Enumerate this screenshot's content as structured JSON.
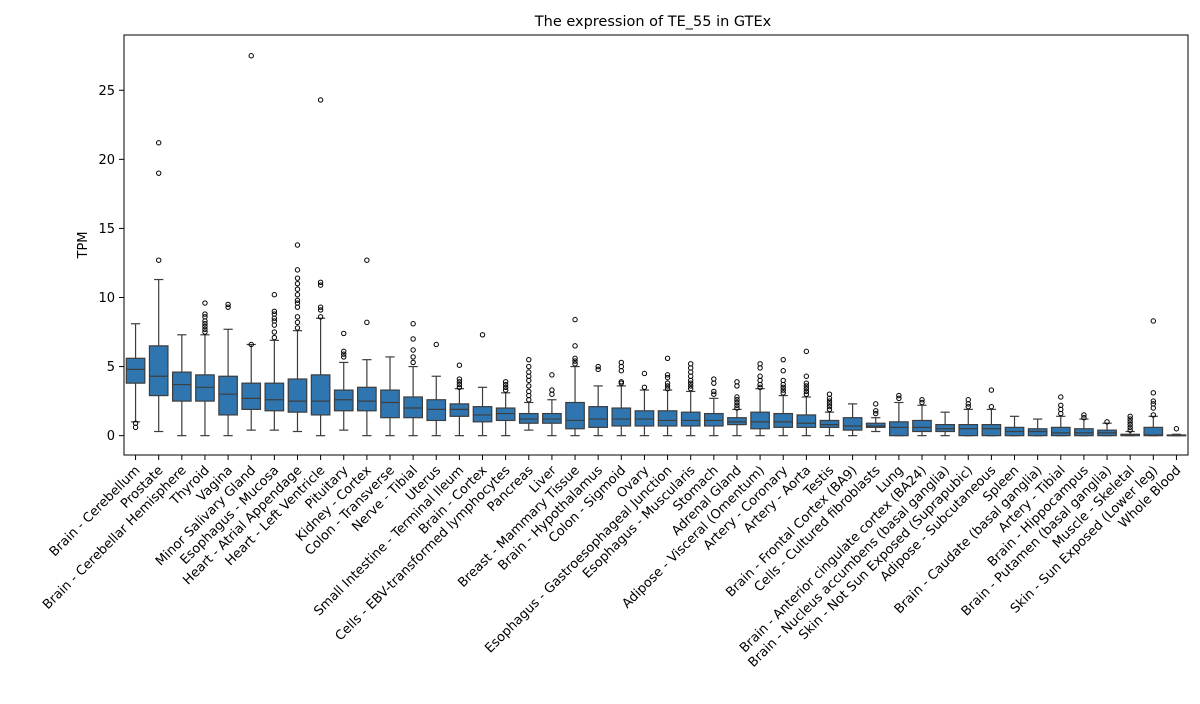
{
  "chart_data": {
    "type": "box",
    "title": "The expression of TE_55 in GTEx",
    "xlabel": "",
    "ylabel": "TPM",
    "ylim": [
      -1.4,
      29
    ],
    "yticks": [
      0,
      5,
      10,
      15,
      20,
      25
    ],
    "grid": false,
    "box_color": "#2f75b0",
    "categories": [
      "Brain - Cerebellum",
      "Prostate",
      "Brain - Cerebellar Hemisphere",
      "Thyroid",
      "Vagina",
      "Minor Salivary Gland",
      "Esophagus - Mucosa",
      "Heart - Atrial Appendage",
      "Heart - Left Ventricle",
      "Pituitary",
      "Kidney - Cortex",
      "Colon - Transverse",
      "Nerve - Tibial",
      "Uterus",
      "Small Intestine - Terminal Ileum",
      "Brain - Cortex",
      "Cells - EBV-transformed lymphocytes",
      "Pancreas",
      "Liver",
      "Breast - Mammary Tissue",
      "Brain - Hypothalamus",
      "Colon - Sigmoid",
      "Ovary",
      "Esophagus - Gastroesophageal Junction",
      "Esophagus - Muscularis",
      "Stomach",
      "Adrenal Gland",
      "Adipose - Visceral (Omentum)",
      "Artery - Coronary",
      "Artery - Aorta",
      "Testis",
      "Brain - Frontal Cortex (BA9)",
      "Cells - Cultured fibroblasts",
      "Lung",
      "Brain - Anterior cingulate cortex (BA24)",
      "Brain - Nucleus accumbens (basal ganglia)",
      "Skin - Not Sun Exposed (Suprapubic)",
      "Adipose - Subcutaneous",
      "Spleen",
      "Brain - Caudate (basal ganglia)",
      "Artery - Tibial",
      "Brain - Hippocampus",
      "Brain - Putamen (basal ganglia)",
      "Muscle - Skeletal",
      "Skin - Sun Exposed (Lower leg)",
      "Whole Blood"
    ],
    "boxes": [
      {
        "whislo": 1.0,
        "q1": 3.8,
        "med": 4.8,
        "q3": 5.6,
        "whishi": 8.1,
        "fliers": [
          0.6,
          0.9
        ]
      },
      {
        "whislo": 0.3,
        "q1": 2.9,
        "med": 4.3,
        "q3": 6.5,
        "whishi": 11.3,
        "fliers": [
          12.7,
          19.0,
          21.2
        ]
      },
      {
        "whislo": 0.0,
        "q1": 2.5,
        "med": 3.7,
        "q3": 4.6,
        "whishi": 7.3,
        "fliers": []
      },
      {
        "whislo": 0.0,
        "q1": 2.5,
        "med": 3.5,
        "q3": 4.4,
        "whishi": 7.3,
        "fliers": [
          7.5,
          7.7,
          7.9,
          8.1,
          8.3,
          8.6,
          8.8,
          9.6
        ]
      },
      {
        "whislo": 0.0,
        "q1": 1.5,
        "med": 3.0,
        "q3": 4.3,
        "whishi": 7.7,
        "fliers": [
          9.3,
          9.5
        ]
      },
      {
        "whislo": 0.4,
        "q1": 1.9,
        "med": 2.7,
        "q3": 3.8,
        "whishi": 6.6,
        "fliers": [
          6.6,
          27.5
        ]
      },
      {
        "whislo": 0.4,
        "q1": 1.8,
        "med": 2.6,
        "q3": 3.8,
        "whishi": 6.9,
        "fliers": [
          7.1,
          7.5,
          8.0,
          8.3,
          8.5,
          8.8,
          9.0,
          10.2
        ]
      },
      {
        "whislo": 0.3,
        "q1": 1.7,
        "med": 2.5,
        "q3": 4.1,
        "whishi": 7.6,
        "fliers": [
          7.8,
          8.2,
          8.6,
          9.3,
          9.6,
          9.8,
          10.2,
          10.6,
          11.0,
          11.4,
          12.0,
          13.8
        ]
      },
      {
        "whislo": 0.0,
        "q1": 1.5,
        "med": 2.5,
        "q3": 4.4,
        "whishi": 8.5,
        "fliers": [
          8.6,
          9.1,
          9.3,
          10.9,
          11.1,
          24.3
        ]
      },
      {
        "whislo": 0.4,
        "q1": 1.8,
        "med": 2.6,
        "q3": 3.3,
        "whishi": 5.3,
        "fliers": [
          5.7,
          5.9,
          6.1,
          7.4
        ]
      },
      {
        "whislo": 0.0,
        "q1": 1.8,
        "med": 2.5,
        "q3": 3.5,
        "whishi": 5.5,
        "fliers": [
          8.2,
          12.7
        ]
      },
      {
        "whislo": 0.0,
        "q1": 1.3,
        "med": 2.4,
        "q3": 3.3,
        "whishi": 5.7,
        "fliers": []
      },
      {
        "whislo": 0.0,
        "q1": 1.3,
        "med": 2.0,
        "q3": 2.8,
        "whishi": 5.0,
        "fliers": [
          5.3,
          5.7,
          6.2,
          7.0,
          8.1
        ]
      },
      {
        "whislo": 0.0,
        "q1": 1.1,
        "med": 1.9,
        "q3": 2.6,
        "whishi": 4.3,
        "fliers": [
          6.6
        ]
      },
      {
        "whislo": 0.0,
        "q1": 1.4,
        "med": 1.9,
        "q3": 2.3,
        "whishi": 3.4,
        "fliers": [
          3.5,
          3.7,
          3.9,
          4.1,
          5.1
        ]
      },
      {
        "whislo": 0.0,
        "q1": 1.0,
        "med": 1.5,
        "q3": 2.1,
        "whishi": 3.5,
        "fliers": [
          7.3
        ]
      },
      {
        "whislo": 0.0,
        "q1": 1.1,
        "med": 1.6,
        "q3": 2.0,
        "whishi": 3.1,
        "fliers": [
          3.3,
          3.5,
          3.7,
          3.9
        ]
      },
      {
        "whislo": 0.4,
        "q1": 0.9,
        "med": 1.2,
        "q3": 1.6,
        "whishi": 2.4,
        "fliers": [
          2.6,
          2.9,
          3.2,
          3.6,
          4.0,
          4.3,
          4.6,
          5.0,
          5.5
        ]
      },
      {
        "whislo": 0.0,
        "q1": 0.9,
        "med": 1.2,
        "q3": 1.6,
        "whishi": 2.6,
        "fliers": [
          3.0,
          3.3,
          4.4
        ]
      },
      {
        "whislo": 0.0,
        "q1": 0.5,
        "med": 1.1,
        "q3": 2.4,
        "whishi": 5.0,
        "fliers": [
          5.2,
          5.4,
          5.6,
          6.5,
          8.4
        ]
      },
      {
        "whislo": 0.0,
        "q1": 0.6,
        "med": 1.2,
        "q3": 2.1,
        "whishi": 3.6,
        "fliers": [
          4.8,
          5.0
        ]
      },
      {
        "whislo": 0.0,
        "q1": 0.7,
        "med": 1.2,
        "q3": 2.0,
        "whishi": 3.6,
        "fliers": [
          3.8,
          3.9,
          4.7,
          5.0,
          5.3
        ]
      },
      {
        "whislo": 0.0,
        "q1": 0.7,
        "med": 1.2,
        "q3": 1.8,
        "whishi": 3.3,
        "fliers": [
          3.5,
          4.5
        ]
      },
      {
        "whislo": 0.0,
        "q1": 0.7,
        "med": 1.1,
        "q3": 1.8,
        "whishi": 3.3,
        "fliers": [
          3.4,
          3.6,
          3.8,
          4.2,
          4.4,
          5.6
        ]
      },
      {
        "whislo": 0.0,
        "q1": 0.7,
        "med": 1.1,
        "q3": 1.7,
        "whishi": 3.2,
        "fliers": [
          3.4,
          3.6,
          3.8,
          4.0,
          4.3,
          4.6,
          4.9,
          5.2
        ]
      },
      {
        "whislo": 0.0,
        "q1": 0.7,
        "med": 1.1,
        "q3": 1.6,
        "whishi": 2.7,
        "fliers": [
          3.0,
          3.2,
          3.8,
          4.1
        ]
      },
      {
        "whislo": 0.0,
        "q1": 0.8,
        "med": 1.0,
        "q3": 1.3,
        "whishi": 1.9,
        "fliers": [
          2.0,
          2.2,
          2.4,
          2.6,
          2.8,
          3.6,
          3.9
        ]
      },
      {
        "whislo": 0.0,
        "q1": 0.5,
        "med": 1.0,
        "q3": 1.7,
        "whishi": 3.4,
        "fliers": [
          3.5,
          3.7,
          4.0,
          4.3,
          4.9,
          5.2
        ]
      },
      {
        "whislo": 0.0,
        "q1": 0.6,
        "med": 1.0,
        "q3": 1.6,
        "whishi": 2.9,
        "fliers": [
          3.1,
          3.3,
          3.5,
          3.7,
          4.0,
          4.7,
          5.5
        ]
      },
      {
        "whislo": 0.0,
        "q1": 0.6,
        "med": 0.9,
        "q3": 1.5,
        "whishi": 2.8,
        "fliers": [
          3.0,
          3.2,
          3.4,
          3.6,
          3.8,
          4.3,
          6.1
        ]
      },
      {
        "whislo": 0.0,
        "q1": 0.6,
        "med": 0.8,
        "q3": 1.1,
        "whishi": 1.7,
        "fliers": [
          1.9,
          2.1,
          2.3,
          2.5,
          2.7,
          3.0
        ]
      },
      {
        "whislo": 0.0,
        "q1": 0.4,
        "med": 0.7,
        "q3": 1.3,
        "whishi": 2.3,
        "fliers": []
      },
      {
        "whislo": 0.3,
        "q1": 0.6,
        "med": 0.7,
        "q3": 0.9,
        "whishi": 1.3,
        "fliers": [
          1.6,
          1.8,
          2.3
        ]
      },
      {
        "whislo": 0.0,
        "q1": 0.0,
        "med": 0.6,
        "q3": 1.0,
        "whishi": 2.4,
        "fliers": [
          2.7,
          2.9
        ]
      },
      {
        "whislo": 0.0,
        "q1": 0.3,
        "med": 0.6,
        "q3": 1.1,
        "whishi": 2.2,
        "fliers": [
          2.4,
          2.6
        ]
      },
      {
        "whislo": 0.0,
        "q1": 0.3,
        "med": 0.5,
        "q3": 0.8,
        "whishi": 1.7,
        "fliers": []
      },
      {
        "whislo": 0.0,
        "q1": 0.0,
        "med": 0.5,
        "q3": 0.8,
        "whishi": 1.9,
        "fliers": [
          2.1,
          2.3,
          2.6
        ]
      },
      {
        "whislo": 0.0,
        "q1": 0.0,
        "med": 0.5,
        "q3": 0.8,
        "whishi": 1.9,
        "fliers": [
          2.1,
          3.3
        ]
      },
      {
        "whislo": 0.0,
        "q1": 0.0,
        "med": 0.3,
        "q3": 0.6,
        "whishi": 1.4,
        "fliers": []
      },
      {
        "whislo": 0.0,
        "q1": 0.0,
        "med": 0.3,
        "q3": 0.5,
        "whishi": 1.2,
        "fliers": []
      },
      {
        "whislo": 0.0,
        "q1": 0.0,
        "med": 0.2,
        "q3": 0.6,
        "whishi": 1.4,
        "fliers": [
          1.6,
          1.9,
          2.2,
          2.8
        ]
      },
      {
        "whislo": 0.0,
        "q1": 0.0,
        "med": 0.2,
        "q3": 0.5,
        "whishi": 1.2,
        "fliers": [
          1.3,
          1.5
        ]
      },
      {
        "whislo": 0.0,
        "q1": 0.0,
        "med": 0.2,
        "q3": 0.4,
        "whishi": 0.9,
        "fliers": [
          1.0
        ]
      },
      {
        "whislo": 0.0,
        "q1": 0.0,
        "med": 0.05,
        "q3": 0.1,
        "whishi": 0.3,
        "fliers": [
          0.4,
          0.6,
          0.8,
          1.0,
          1.2,
          1.4
        ]
      },
      {
        "whislo": 0.0,
        "q1": 0.0,
        "med": 0.05,
        "q3": 0.6,
        "whishi": 1.4,
        "fliers": [
          1.5,
          2.0,
          2.3,
          2.5,
          3.1,
          8.3
        ]
      },
      {
        "whislo": 0.0,
        "q1": 0.0,
        "med": 0.02,
        "q3": 0.05,
        "whishi": 0.1,
        "fliers": [
          0.5
        ]
      }
    ]
  }
}
